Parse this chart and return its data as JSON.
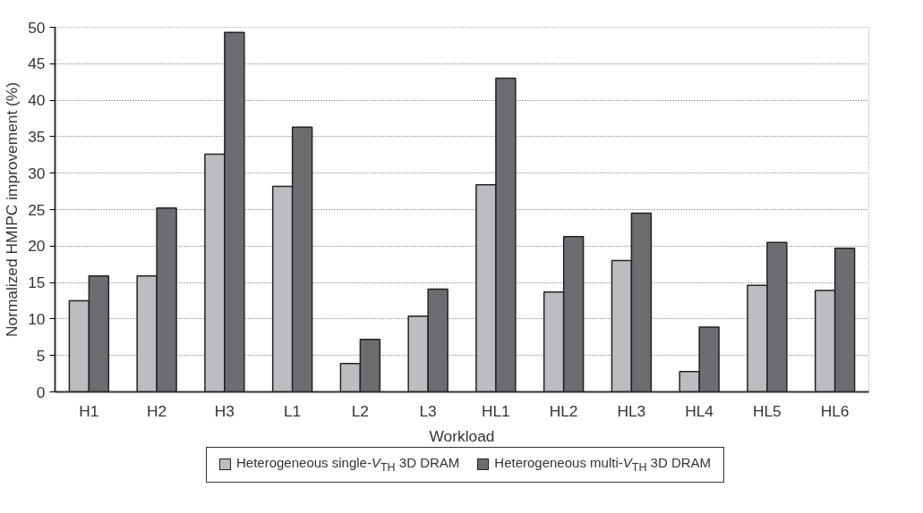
{
  "chart_data": {
    "type": "bar",
    "xlabel": "Workload",
    "ylabel": "Normalized HMIPC improvement (%)",
    "categories": [
      "H1",
      "H2",
      "H3",
      "L1",
      "L2",
      "L3",
      "HL1",
      "HL2",
      "HL3",
      "HL4",
      "HL5",
      "HL6"
    ],
    "series": [
      {
        "name": "Heterogeneous single-V$_{TH}$ 3D DRAM",
        "color": "#bcbdc0",
        "values": [
          12.5,
          15.9,
          32.6,
          28.2,
          3.9,
          10.4,
          28.4,
          13.7,
          18.0,
          2.8,
          14.6,
          13.9
        ]
      },
      {
        "name": "Heterogeneous multi-V$_{TH}$ 3D DRAM",
        "color": "#6c6d71",
        "values": [
          15.9,
          25.2,
          49.3,
          36.3,
          7.2,
          14.1,
          43.0,
          21.3,
          24.5,
          8.9,
          20.5,
          19.7
        ]
      }
    ],
    "ylim": [
      0,
      50
    ],
    "yticks": [
      0,
      5,
      10,
      15,
      20,
      25,
      30,
      35,
      40,
      45,
      50
    ],
    "grid": "y",
    "legend": "bottom"
  }
}
